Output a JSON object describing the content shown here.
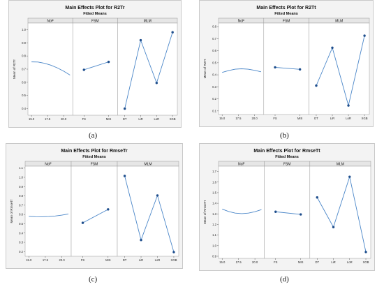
{
  "chart_data": [
    {
      "type": "line",
      "title": "Main Effects Plot for R2Tr",
      "subtitle": "Fitted Means",
      "ylabel": "Mean of R2Tr",
      "ylim": [
        0.35,
        1.05
      ],
      "yticks": [
        0.4,
        0.5,
        0.6,
        0.7,
        0.8,
        0.9,
        1.0
      ],
      "caption": "(a)",
      "facets": [
        {
          "name": "NoF",
          "kind": "curve",
          "xlim": [
            15.0,
            21.0
          ],
          "xticks": [
            "15.0",
            "17.5",
            "20.0"
          ],
          "x": [
            15.0,
            16.0,
            17.0,
            18.0,
            19.0,
            20.0,
            21.0
          ],
          "values": [
            0.755,
            0.754,
            0.745,
            0.73,
            0.71,
            0.685,
            0.655
          ]
        },
        {
          "name": "FSM",
          "kind": "points",
          "categories": [
            "FS",
            "MIS"
          ],
          "values": [
            0.695,
            0.755
          ]
        },
        {
          "name": "MLM",
          "kind": "points",
          "categories": [
            "DT",
            "LiR",
            "LoR",
            "XGB"
          ],
          "values": [
            0.4,
            0.92,
            0.595,
            0.98
          ]
        }
      ]
    },
    {
      "type": "line",
      "title": "Main Effects Plot for R2Tt",
      "subtitle": "Fitted Means",
      "ylabel": "Mean of R2Tt",
      "ylim": [
        0.07,
        0.83
      ],
      "yticks": [
        0.1,
        0.2,
        0.3,
        0.4,
        0.5,
        0.6,
        0.7,
        0.8
      ],
      "caption": "(b)",
      "facets": [
        {
          "name": "NoF",
          "kind": "curve",
          "xlim": [
            15.0,
            21.0
          ],
          "xticks": [
            "15.0",
            "17.5",
            "20.0"
          ],
          "x": [
            15.0,
            16.0,
            17.0,
            18.0,
            19.0,
            20.0,
            21.0
          ],
          "values": [
            0.42,
            0.435,
            0.447,
            0.45,
            0.447,
            0.437,
            0.425
          ]
        },
        {
          "name": "FSM",
          "kind": "points",
          "categories": [
            "FS",
            "MIS"
          ],
          "values": [
            0.462,
            0.445
          ]
        },
        {
          "name": "MLM",
          "kind": "points",
          "categories": [
            "DT",
            "LiR",
            "LoR",
            "XGB"
          ],
          "values": [
            0.31,
            0.625,
            0.145,
            0.725
          ]
        }
      ]
    },
    {
      "type": "line",
      "title": "Main Effects Plot for RmseTr",
      "subtitle": "Fitted Means",
      "ylabel": "Mean of RmseTr",
      "ylim": [
        0.15,
        1.12
      ],
      "yticks": [
        0.2,
        0.3,
        0.4,
        0.5,
        0.6,
        0.7,
        0.8,
        0.9,
        1.0,
        1.1
      ],
      "caption": "(c)",
      "facets": [
        {
          "name": "NoF",
          "kind": "curve",
          "xlim": [
            15.0,
            21.0
          ],
          "xticks": [
            "15.0",
            "17.5",
            "20.0"
          ],
          "x": [
            15.0,
            16.0,
            17.0,
            18.0,
            19.0,
            20.0,
            21.0
          ],
          "values": [
            0.58,
            0.576,
            0.575,
            0.578,
            0.584,
            0.593,
            0.605
          ]
        },
        {
          "name": "FSM",
          "kind": "points",
          "categories": [
            "FS",
            "MIS"
          ],
          "values": [
            0.51,
            0.655
          ]
        },
        {
          "name": "MLM",
          "kind": "points",
          "categories": [
            "DT",
            "LiR",
            "LoR",
            "XGB"
          ],
          "values": [
            1.015,
            0.325,
            0.805,
            0.195
          ]
        }
      ]
    },
    {
      "type": "line",
      "title": "Main Effects Plot for RmseTt",
      "subtitle": "Fitted Means",
      "ylabel": "Mean of RmseTt",
      "ylim": [
        0.88,
        1.75
      ],
      "yticks": [
        0.9,
        1.0,
        1.1,
        1.2,
        1.3,
        1.4,
        1.5,
        1.6,
        1.7
      ],
      "caption": "(d)",
      "facets": [
        {
          "name": "NoF",
          "kind": "curve",
          "xlim": [
            15.0,
            21.0
          ],
          "xticks": [
            "15.0",
            "17.5",
            "20.0"
          ],
          "x": [
            15.0,
            16.0,
            17.0,
            18.0,
            19.0,
            20.0,
            21.0
          ],
          "values": [
            1.345,
            1.322,
            1.307,
            1.302,
            1.307,
            1.32,
            1.34
          ]
        },
        {
          "name": "FSM",
          "kind": "points",
          "categories": [
            "FS",
            "MIS"
          ],
          "values": [
            1.32,
            1.295
          ]
        },
        {
          "name": "MLM",
          "kind": "points",
          "categories": [
            "DT",
            "LiR",
            "LoR",
            "XGB"
          ],
          "values": [
            1.455,
            1.175,
            1.65,
            0.94
          ]
        }
      ]
    }
  ],
  "colors": {
    "line": "#4a86c8",
    "point": "#1f4e8c",
    "frame_bg": "#f3f3f3",
    "plot_bg": "#ffffff",
    "facet_bar": "#e6e6e6"
  }
}
